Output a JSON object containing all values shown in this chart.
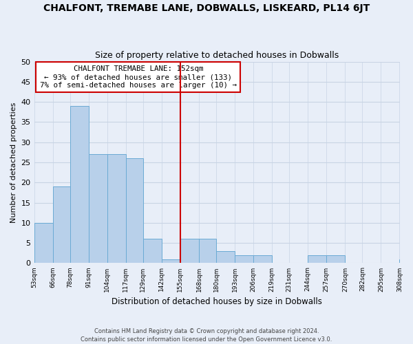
{
  "title": "CHALFONT, TREMABE LANE, DOBWALLS, LISKEARD, PL14 6JT",
  "subtitle": "Size of property relative to detached houses in Dobwalls",
  "xlabel": "Distribution of detached houses by size in Dobwalls",
  "ylabel": "Number of detached properties",
  "bin_edges": [
    53,
    66,
    78,
    91,
    104,
    117,
    129,
    142,
    155,
    168,
    180,
    193,
    206,
    219,
    231,
    244,
    257,
    270,
    282,
    295,
    308
  ],
  "counts": [
    10,
    19,
    39,
    27,
    27,
    26,
    6,
    1,
    6,
    6,
    3,
    2,
    2,
    0,
    0,
    2,
    2,
    0,
    0,
    0,
    1
  ],
  "bar_color": "#b8d0ea",
  "bar_edge_color": "#6aaad4",
  "reference_line_x": 155,
  "reference_line_color": "#cc0000",
  "annotation_title": "CHALFONT TREMABE LANE: 152sqm",
  "annotation_line1": "← 93% of detached houses are smaller (133)",
  "annotation_line2": "7% of semi-detached houses are larger (10) →",
  "annotation_box_color": "#ffffff",
  "annotation_box_edge_color": "#cc0000",
  "ylim": [
    0,
    50
  ],
  "yticks": [
    0,
    5,
    10,
    15,
    20,
    25,
    30,
    35,
    40,
    45,
    50
  ],
  "tick_labels": [
    "53sqm",
    "66sqm",
    "78sqm",
    "91sqm",
    "104sqm",
    "117sqm",
    "129sqm",
    "142sqm",
    "155sqm",
    "168sqm",
    "180sqm",
    "193sqm",
    "206sqm",
    "219sqm",
    "231sqm",
    "244sqm",
    "257sqm",
    "270sqm",
    "282sqm",
    "295sqm",
    "308sqm"
  ],
  "footer_line1": "Contains HM Land Registry data © Crown copyright and database right 2024.",
  "footer_line2": "Contains public sector information licensed under the Open Government Licence v3.0.",
  "grid_color": "#c8d4e4",
  "background_color": "#e8eef8"
}
